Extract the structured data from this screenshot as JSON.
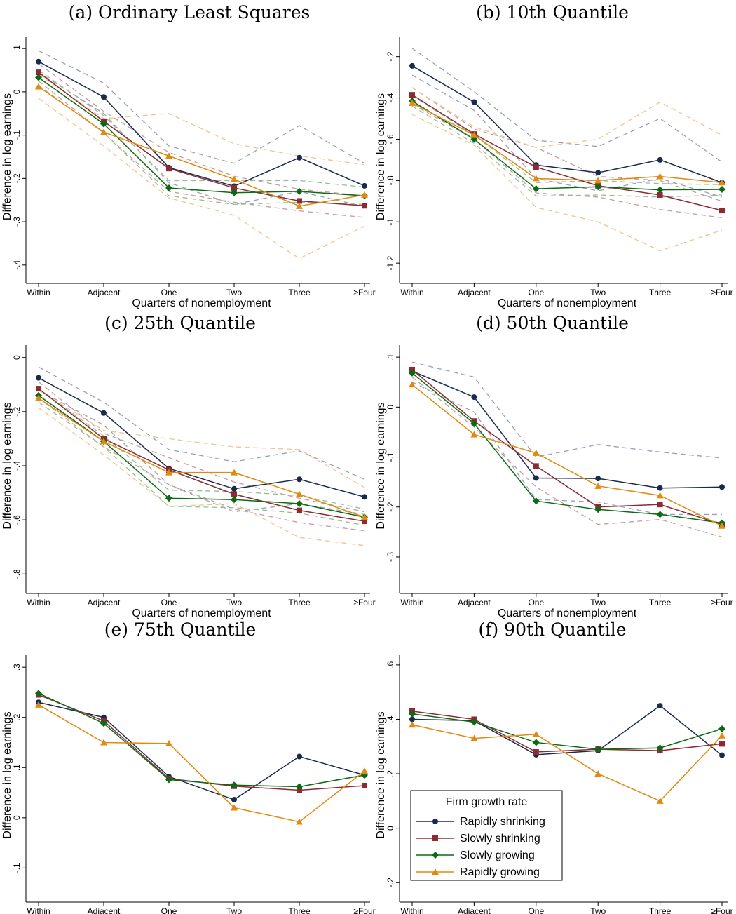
{
  "figure": {
    "xlabel": "Quarters of nonemployment",
    "ylabel": "Difference in log earnings",
    "categories": [
      "Within",
      "Adjacent",
      "One",
      "Two",
      "Three",
      "≥Four"
    ]
  },
  "legend": {
    "title": "Firm growth rate",
    "placement": "inside-bottom-left of panel (f)",
    "items": [
      "Rapidly shrinking",
      "Slowly shrinking",
      "Slowly growing",
      "Rapidly growing"
    ]
  },
  "colors": {
    "Rapidly shrinking": "#1a2a4e",
    "Slowly shrinking": "#8c2b34",
    "Slowly growing": "#0b6b12",
    "Rapidly growing": "#e08a10",
    "ci_Rapidly shrinking": "#9aa0b3",
    "ci_Slowly shrinking": "#c79a9e",
    "ci_Slowly growing": "#93bd94",
    "ci_Rapidly growing": "#f3c38a"
  },
  "chart_data": [
    {
      "type": "line",
      "title": "(a) Ordinary Least Squares",
      "categories": [
        "Within",
        "Adjacent",
        "One",
        "Two",
        "Three",
        "≥Four"
      ],
      "xlabel": "Quarters of nonemployment",
      "ylabel": "Difference in log earnings",
      "ylim": [
        -0.41,
        0.11
      ],
      "yticks": [
        0.1,
        0,
        -0.1,
        -0.2,
        -0.3,
        -0.4
      ],
      "ytick_labels": [
        ".1",
        "0",
        "-.1",
        "-.2",
        "-.3",
        "-.4"
      ],
      "grid": false,
      "series": [
        {
          "name": "Rapidly shrinking",
          "marker": "circle",
          "values": [
            0.07,
            -0.012,
            -0.175,
            -0.218,
            -0.152,
            -0.217
          ],
          "ci_lower": [
            0.045,
            -0.05,
            -0.21,
            -0.26,
            -0.23,
            -0.265
          ],
          "ci_upper": [
            0.095,
            0.02,
            -0.125,
            -0.165,
            -0.078,
            -0.165
          ]
        },
        {
          "name": "Slowly shrinking",
          "marker": "square",
          "values": [
            0.045,
            -0.068,
            -0.177,
            -0.222,
            -0.252,
            -0.263
          ],
          "ci_lower": [
            0.025,
            -0.095,
            -0.23,
            -0.255,
            -0.275,
            -0.29
          ],
          "ci_upper": [
            0.065,
            -0.045,
            -0.14,
            -0.195,
            -0.225,
            -0.24
          ]
        },
        {
          "name": "Slowly growing",
          "marker": "diamond",
          "values": [
            0.033,
            -0.074,
            -0.222,
            -0.233,
            -0.23,
            -0.24
          ],
          "ci_lower": [
            0.015,
            -0.095,
            -0.24,
            -0.26,
            -0.255,
            -0.26
          ],
          "ci_upper": [
            0.05,
            -0.055,
            -0.205,
            -0.205,
            -0.205,
            -0.22
          ]
        },
        {
          "name": "Rapidly growing",
          "marker": "triangle",
          "values": [
            0.012,
            -0.093,
            -0.148,
            -0.202,
            -0.264,
            -0.238
          ],
          "ci_lower": [
            -0.015,
            -0.125,
            -0.245,
            -0.285,
            -0.385,
            -0.31
          ],
          "ci_upper": [
            0.04,
            -0.062,
            -0.05,
            -0.12,
            -0.148,
            -0.168
          ]
        }
      ]
    },
    {
      "type": "line",
      "title": "(b) 10th Quantile",
      "categories": [
        "Within",
        "Adjacent",
        "One",
        "Two",
        "Three",
        "≥Four"
      ],
      "xlabel": "Quarters of nonemployment",
      "ylabel": "Difference in log earnings",
      "ylim": [
        -1.23,
        -0.14
      ],
      "yticks": [
        -0.2,
        -0.4,
        -0.6,
        -0.8,
        -1,
        -1.2
      ],
      "ytick_labels": [
        "-.2",
        "-.4",
        "-.6",
        "-.8",
        "-1",
        "-1.2"
      ],
      "grid": false,
      "series": [
        {
          "name": "Rapidly shrinking",
          "marker": "circle",
          "values": [
            -0.245,
            -0.42,
            -0.725,
            -0.762,
            -0.7,
            -0.81
          ],
          "ci_lower": [
            -0.29,
            -0.46,
            -0.79,
            -0.85,
            -0.79,
            -0.88
          ],
          "ci_upper": [
            -0.16,
            -0.37,
            -0.605,
            -0.635,
            -0.5,
            -0.71
          ]
        },
        {
          "name": "Slowly shrinking",
          "marker": "square",
          "values": [
            -0.385,
            -0.575,
            -0.735,
            -0.825,
            -0.87,
            -0.945
          ],
          "ci_lower": [
            -0.43,
            -0.6,
            -0.86,
            -0.88,
            -0.94,
            -0.98
          ],
          "ci_upper": [
            -0.35,
            -0.55,
            -0.64,
            -0.78,
            -0.8,
            -0.9
          ]
        },
        {
          "name": "Slowly growing",
          "marker": "diamond",
          "values": [
            -0.415,
            -0.6,
            -0.84,
            -0.83,
            -0.845,
            -0.843
          ],
          "ci_lower": [
            -0.44,
            -0.62,
            -0.875,
            -0.87,
            -0.88,
            -0.87
          ],
          "ci_upper": [
            -0.39,
            -0.58,
            -0.81,
            -0.8,
            -0.815,
            -0.82
          ]
        },
        {
          "name": "Rapidly growing",
          "marker": "triangle",
          "values": [
            -0.425,
            -0.58,
            -0.79,
            -0.8,
            -0.78,
            -0.81
          ],
          "ci_lower": [
            -0.48,
            -0.63,
            -0.93,
            -1.0,
            -1.14,
            -1.04
          ],
          "ci_upper": [
            -0.35,
            -0.54,
            -0.64,
            -0.6,
            -0.42,
            -0.58
          ]
        }
      ]
    },
    {
      "type": "line",
      "title": "(c) 25th Quantile",
      "categories": [
        "Within",
        "Adjacent",
        "One",
        "Two",
        "Three",
        "≥Four"
      ],
      "xlabel": "Quarters of nonemployment",
      "ylabel": "Difference in log earnings",
      "ylim": [
        -0.82,
        0.02
      ],
      "yticks": [
        0,
        -0.2,
        -0.4,
        -0.6,
        -0.8
      ],
      "ytick_labels": [
        "0",
        "-.2",
        "-.4",
        "-.6",
        "-.8"
      ],
      "grid": false,
      "series": [
        {
          "name": "Rapidly shrinking",
          "marker": "circle",
          "values": [
            -0.075,
            -0.205,
            -0.41,
            -0.485,
            -0.45,
            -0.515
          ],
          "ci_lower": [
            -0.12,
            -0.25,
            -0.47,
            -0.57,
            -0.54,
            -0.58
          ],
          "ci_upper": [
            -0.035,
            -0.165,
            -0.34,
            -0.385,
            -0.345,
            -0.45
          ]
        },
        {
          "name": "Slowly shrinking",
          "marker": "square",
          "values": [
            -0.115,
            -0.3,
            -0.415,
            -0.505,
            -0.565,
            -0.605
          ],
          "ci_lower": [
            -0.15,
            -0.33,
            -0.47,
            -0.56,
            -0.61,
            -0.64
          ],
          "ci_upper": [
            -0.09,
            -0.28,
            -0.37,
            -0.46,
            -0.52,
            -0.57
          ]
        },
        {
          "name": "Slowly growing",
          "marker": "diamond",
          "values": [
            -0.14,
            -0.31,
            -0.52,
            -0.525,
            -0.54,
            -0.59
          ],
          "ci_lower": [
            -0.165,
            -0.33,
            -0.55,
            -0.555,
            -0.575,
            -0.62
          ],
          "ci_upper": [
            -0.115,
            -0.29,
            -0.49,
            -0.495,
            -0.51,
            -0.56
          ]
        },
        {
          "name": "Rapidly growing",
          "marker": "triangle",
          "values": [
            -0.15,
            -0.31,
            -0.425,
            -0.425,
            -0.505,
            -0.59
          ],
          "ci_lower": [
            -0.185,
            -0.36,
            -0.55,
            -0.54,
            -0.665,
            -0.695
          ],
          "ci_upper": [
            -0.12,
            -0.27,
            -0.3,
            -0.33,
            -0.34,
            -0.48
          ]
        }
      ]
    },
    {
      "type": "line",
      "title": "(d) 50th Quantile",
      "categories": [
        "Within",
        "Adjacent",
        "One",
        "Two",
        "Three",
        "≥Four"
      ],
      "xlabel": "Quarters of nonemployment",
      "ylabel": "Difference in log earnings",
      "ylim": [
        -0.345,
        0.11
      ],
      "yticks": [
        0.1,
        0,
        -0.1,
        -0.2,
        -0.3
      ],
      "ytick_labels": [
        ".1",
        "0",
        "-.1",
        "-.2",
        "-.3"
      ],
      "grid": false,
      "series": [
        {
          "name": "Rapidly shrinking",
          "marker": "circle",
          "values": [
            0.072,
            0.02,
            -0.142,
            -0.143,
            -0.162,
            -0.16
          ],
          "ci_lower": [
            0.05,
            -0.01,
            -0.185,
            -0.19,
            -0.215,
            -0.215
          ],
          "ci_upper": [
            0.09,
            0.06,
            -0.1,
            -0.075,
            -0.09,
            -0.102
          ]
        },
        {
          "name": "Slowly shrinking",
          "marker": "square",
          "values": [
            0.075,
            -0.028,
            -0.118,
            -0.2,
            -0.195,
            -0.235
          ],
          "ci_lower": [
            0.06,
            -0.04,
            -0.16,
            -0.235,
            -0.225,
            -0.26
          ]
        },
        {
          "name": "Slowly growing",
          "marker": "diamond",
          "values": [
            0.068,
            -0.033,
            -0.188,
            -0.205,
            -0.215,
            -0.232
          ]
        },
        {
          "name": "Rapidly growing",
          "marker": "triangle",
          "values": [
            0.045,
            -0.055,
            -0.092,
            -0.158,
            -0.177,
            -0.238
          ]
        }
      ]
    },
    {
      "type": "line",
      "title": "(e) 75th Quantile",
      "categories": [
        "Within",
        "Adjacent",
        "One",
        "Two",
        "Three",
        "≥Four"
      ],
      "xlabel": "Quarters of nonemployment",
      "ylabel": "Difference in log earnings",
      "ylim": [
        -0.14,
        0.31
      ],
      "yticks": [
        0.3,
        0.2,
        0.1,
        0,
        -0.1
      ],
      "ytick_labels": [
        ".3",
        ".2",
        ".1",
        "0",
        "-.1"
      ],
      "grid": false,
      "series": [
        {
          "name": "Rapidly shrinking",
          "marker": "circle",
          "values": [
            0.23,
            0.2,
            0.082,
            0.036,
            0.122,
            0.085
          ]
        },
        {
          "name": "Slowly shrinking",
          "marker": "square",
          "values": [
            0.245,
            0.193,
            0.078,
            0.063,
            0.055,
            0.064
          ]
        },
        {
          "name": "Slowly growing",
          "marker": "diamond",
          "values": [
            0.248,
            0.188,
            0.076,
            0.065,
            0.062,
            0.085
          ]
        },
        {
          "name": "Rapidly growing",
          "marker": "triangle",
          "values": [
            0.225,
            0.15,
            0.148,
            0.02,
            -0.008,
            0.093
          ]
        }
      ]
    },
    {
      "type": "line",
      "title": "(f) 90th Quantile",
      "categories": [
        "Within",
        "Adjacent",
        "One",
        "Two",
        "Three",
        "≥Four"
      ],
      "xlabel": "Quarters of nonemployment",
      "ylabel": "Difference in log earnings",
      "ylim": [
        -0.22,
        0.61
      ],
      "yticks": [
        0.6,
        0.4,
        0.2,
        0,
        -0.2
      ],
      "ytick_labels": [
        ".6",
        ".4",
        ".2",
        "0",
        "-.2"
      ],
      "grid": false,
      "series": [
        {
          "name": "Rapidly shrinking",
          "marker": "circle",
          "values": [
            0.4,
            0.395,
            0.27,
            0.285,
            0.45,
            0.268
          ]
        },
        {
          "name": "Slowly shrinking",
          "marker": "square",
          "values": [
            0.43,
            0.4,
            0.28,
            0.29,
            0.285,
            0.31
          ]
        },
        {
          "name": "Slowly growing",
          "marker": "diamond",
          "values": [
            0.42,
            0.39,
            0.315,
            0.29,
            0.295,
            0.365
          ]
        },
        {
          "name": "Rapidly growing",
          "marker": "triangle",
          "values": [
            0.38,
            0.33,
            0.345,
            0.2,
            0.1,
            0.34
          ]
        }
      ]
    }
  ]
}
